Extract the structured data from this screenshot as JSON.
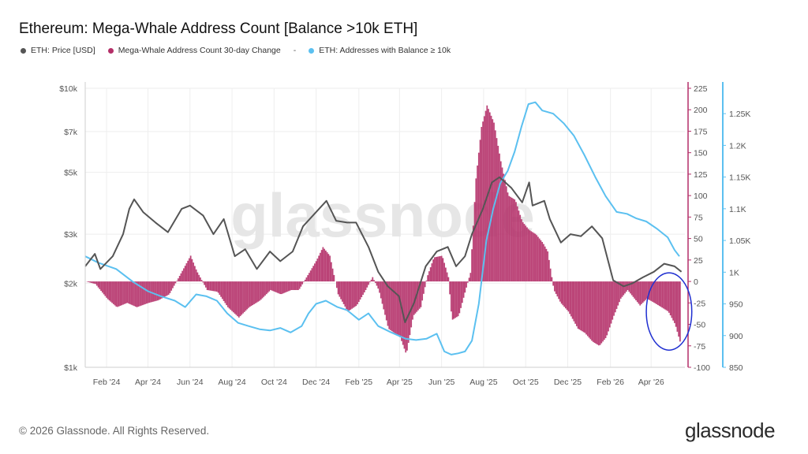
{
  "header": {
    "title": "Ethereum: Mega-Whale Address Count [Balance >10k ETH]"
  },
  "legend": {
    "items": [
      {
        "label": "ETH: Price [USD]",
        "color": "#555555",
        "icon": "dot"
      },
      {
        "label": "Mega-Whale Address Count 30-day Change",
        "color": "#b42f68",
        "icon": "dot"
      },
      {
        "label": "ETH: Addresses with Balance ≥ 10k",
        "color": "#5bc0f0",
        "icon": "dot"
      }
    ],
    "separator": "-"
  },
  "footer": {
    "copyright": "© 2026 Glassnode. All Rights Reserved.",
    "brand": "glassnode"
  },
  "watermark": "glassnode",
  "chart_data": {
    "type": "line",
    "x_ticks": [
      "Feb '24",
      "Apr '24",
      "Jun '24",
      "Aug '24",
      "Oct '24",
      "Dec '24",
      "Feb '25",
      "Apr '25",
      "Jun '25",
      "Aug '25",
      "Oct '25",
      "Dec '25",
      "Feb '26",
      "Apr '26"
    ],
    "x_range": [
      "2024-01-01",
      "2026-05-20"
    ],
    "axes": {
      "left": {
        "scale": "log",
        "range": [
          1000,
          10000
        ],
        "ticks": [
          "$1k",
          "$2k",
          "$3k",
          "$5k",
          "$7k",
          "$10k"
        ],
        "tick_values": [
          1000,
          2000,
          3000,
          5000,
          7000,
          10000
        ],
        "color": "#888888"
      },
      "right_inner": {
        "range": [
          -100,
          225
        ],
        "ticks": [
          "-100",
          "-75",
          "-50",
          "-25",
          "0",
          "25",
          "50",
          "75",
          "100",
          "125",
          "150",
          "175",
          "200",
          "225"
        ],
        "tick_values": [
          -100,
          -75,
          -50,
          -25,
          0,
          25,
          50,
          75,
          100,
          125,
          150,
          175,
          200,
          225
        ],
        "color": "#b42f68"
      },
      "right_outer": {
        "range": [
          850,
          1290
        ],
        "ticks": [
          "850",
          "900",
          "950",
          "1K",
          "1.05K",
          "1.1K",
          "1.15K",
          "1.2K",
          "1.25K"
        ],
        "tick_values": [
          850,
          900,
          950,
          1000,
          1050,
          1100,
          1150,
          1200,
          1250
        ],
        "color": "#5bc0f0"
      }
    },
    "series": [
      {
        "name": "ETH: Price [USD]",
        "axis": "left",
        "color": "#555555",
        "points": [
          [
            "2024-01-01",
            2300
          ],
          [
            "2024-01-15",
            2550
          ],
          [
            "2024-01-23",
            2250
          ],
          [
            "2024-02-10",
            2500
          ],
          [
            "2024-02-25",
            3000
          ],
          [
            "2024-03-05",
            3700
          ],
          [
            "2024-03-12",
            4000
          ],
          [
            "2024-03-25",
            3600
          ],
          [
            "2024-04-12",
            3300
          ],
          [
            "2024-04-30",
            3050
          ],
          [
            "2024-05-20",
            3700
          ],
          [
            "2024-06-01",
            3800
          ],
          [
            "2024-06-20",
            3500
          ],
          [
            "2024-07-05",
            3000
          ],
          [
            "2024-07-20",
            3400
          ],
          [
            "2024-08-05",
            2500
          ],
          [
            "2024-08-20",
            2650
          ],
          [
            "2024-09-06",
            2250
          ],
          [
            "2024-09-25",
            2600
          ],
          [
            "2024-10-10",
            2400
          ],
          [
            "2024-10-28",
            2600
          ],
          [
            "2024-11-12",
            3200
          ],
          [
            "2024-12-01",
            3600
          ],
          [
            "2024-12-16",
            3950
          ],
          [
            "2024-12-30",
            3350
          ],
          [
            "2025-01-15",
            3300
          ],
          [
            "2025-01-28",
            3300
          ],
          [
            "2025-02-15",
            2700
          ],
          [
            "2025-03-01",
            2200
          ],
          [
            "2025-03-15",
            1950
          ],
          [
            "2025-03-31",
            1800
          ],
          [
            "2025-04-09",
            1450
          ],
          [
            "2025-04-22",
            1700
          ],
          [
            "2025-05-09",
            2300
          ],
          [
            "2025-05-25",
            2600
          ],
          [
            "2025-06-10",
            2700
          ],
          [
            "2025-06-22",
            2300
          ],
          [
            "2025-07-05",
            2500
          ],
          [
            "2025-07-15",
            3000
          ],
          [
            "2025-07-31",
            3700
          ],
          [
            "2025-08-13",
            4600
          ],
          [
            "2025-08-24",
            4800
          ],
          [
            "2025-09-10",
            4400
          ],
          [
            "2025-09-26",
            3900
          ],
          [
            "2025-10-06",
            4600
          ],
          [
            "2025-10-11",
            3800
          ],
          [
            "2025-10-28",
            3950
          ],
          [
            "2025-11-05",
            3400
          ],
          [
            "2025-11-21",
            2800
          ],
          [
            "2025-12-05",
            3000
          ],
          [
            "2025-12-20",
            2950
          ],
          [
            "2026-01-05",
            3200
          ],
          [
            "2026-01-20",
            2900
          ],
          [
            "2026-02-05",
            2050
          ],
          [
            "2026-02-20",
            1950
          ],
          [
            "2026-03-05",
            2000
          ],
          [
            "2026-03-20",
            2100
          ],
          [
            "2026-04-05",
            2200
          ],
          [
            "2026-04-20",
            2350
          ],
          [
            "2026-05-05",
            2300
          ],
          [
            "2026-05-15",
            2200
          ]
        ]
      },
      {
        "name": "Mega-Whale Address Count 30-day Change",
        "axis": "right_inner",
        "color": "#b42f68",
        "style": "bars",
        "points": [
          [
            "2024-01-01",
            0
          ],
          [
            "2024-01-15",
            -3
          ],
          [
            "2024-02-01",
            -20
          ],
          [
            "2024-02-15",
            -30
          ],
          [
            "2024-03-01",
            -25
          ],
          [
            "2024-03-15",
            -30
          ],
          [
            "2024-04-01",
            -25
          ],
          [
            "2024-04-15",
            -22
          ],
          [
            "2024-05-01",
            -15
          ],
          [
            "2024-05-15",
            5
          ],
          [
            "2024-06-01",
            30
          ],
          [
            "2024-06-10",
            12
          ],
          [
            "2024-06-25",
            -10
          ],
          [
            "2024-07-10",
            -12
          ],
          [
            "2024-07-25",
            -30
          ],
          [
            "2024-08-10",
            -42
          ],
          [
            "2024-08-25",
            -30
          ],
          [
            "2024-09-10",
            -22
          ],
          [
            "2024-09-25",
            -10
          ],
          [
            "2024-10-10",
            -15
          ],
          [
            "2024-10-25",
            -10
          ],
          [
            "2024-11-05",
            -10
          ],
          [
            "2024-11-20",
            10
          ],
          [
            "2024-12-01",
            25
          ],
          [
            "2024-12-10",
            40
          ],
          [
            "2024-12-20",
            30
          ],
          [
            "2025-01-01",
            -15
          ],
          [
            "2025-01-15",
            -35
          ],
          [
            "2025-01-28",
            -28
          ],
          [
            "2025-02-10",
            -10
          ],
          [
            "2025-02-20",
            5
          ],
          [
            "2025-03-01",
            -10
          ],
          [
            "2025-03-15",
            -55
          ],
          [
            "2025-04-01",
            -65
          ],
          [
            "2025-04-10",
            -85
          ],
          [
            "2025-04-20",
            -40
          ],
          [
            "2025-05-01",
            -30
          ],
          [
            "2025-05-10",
            5
          ],
          [
            "2025-05-20",
            28
          ],
          [
            "2025-06-01",
            30
          ],
          [
            "2025-06-10",
            5
          ],
          [
            "2025-06-15",
            -45
          ],
          [
            "2025-06-25",
            -40
          ],
          [
            "2025-07-05",
            -10
          ],
          [
            "2025-07-12",
            10
          ],
          [
            "2025-07-20",
            120
          ],
          [
            "2025-07-28",
            180
          ],
          [
            "2025-08-05",
            205
          ],
          [
            "2025-08-15",
            185
          ],
          [
            "2025-08-25",
            140
          ],
          [
            "2025-09-05",
            100
          ],
          [
            "2025-09-15",
            95
          ],
          [
            "2025-09-25",
            70
          ],
          [
            "2025-10-05",
            60
          ],
          [
            "2025-10-15",
            55
          ],
          [
            "2025-10-25",
            45
          ],
          [
            "2025-11-01",
            35
          ],
          [
            "2025-11-10",
            -10
          ],
          [
            "2025-11-20",
            -25
          ],
          [
            "2025-12-01",
            -35
          ],
          [
            "2025-12-15",
            -55
          ],
          [
            "2025-12-25",
            -60
          ],
          [
            "2026-01-05",
            -70
          ],
          [
            "2026-01-15",
            -75
          ],
          [
            "2026-01-25",
            -65
          ],
          [
            "2026-02-05",
            -40
          ],
          [
            "2026-02-15",
            -20
          ],
          [
            "2026-02-25",
            -10
          ],
          [
            "2026-03-05",
            -18
          ],
          [
            "2026-03-15",
            -28
          ],
          [
            "2026-03-25",
            -20
          ],
          [
            "2026-04-05",
            -25
          ],
          [
            "2026-04-15",
            -30
          ],
          [
            "2026-04-25",
            -35
          ],
          [
            "2026-05-05",
            -50
          ],
          [
            "2026-05-12",
            -70
          ]
        ]
      },
      {
        "name": "ETH: Addresses with Balance ≥ 10k",
        "axis": "right_outer",
        "color": "#5bc0f0",
        "points": [
          [
            "2024-01-01",
            1025
          ],
          [
            "2024-01-20",
            1015
          ],
          [
            "2024-02-15",
            1005
          ],
          [
            "2024-03-10",
            985
          ],
          [
            "2024-04-01",
            970
          ],
          [
            "2024-04-20",
            962
          ],
          [
            "2024-05-10",
            955
          ],
          [
            "2024-05-25",
            945
          ],
          [
            "2024-06-10",
            965
          ],
          [
            "2024-06-25",
            962
          ],
          [
            "2024-07-10",
            955
          ],
          [
            "2024-07-25",
            935
          ],
          [
            "2024-08-10",
            920
          ],
          [
            "2024-08-25",
            915
          ],
          [
            "2024-09-10",
            910
          ],
          [
            "2024-09-25",
            908
          ],
          [
            "2024-10-10",
            912
          ],
          [
            "2024-10-25",
            905
          ],
          [
            "2024-11-10",
            915
          ],
          [
            "2024-11-20",
            935
          ],
          [
            "2024-12-01",
            950
          ],
          [
            "2024-12-15",
            955
          ],
          [
            "2025-01-01",
            945
          ],
          [
            "2025-01-15",
            940
          ],
          [
            "2025-02-01",
            925
          ],
          [
            "2025-02-15",
            935
          ],
          [
            "2025-03-01",
            915
          ],
          [
            "2025-03-20",
            905
          ],
          [
            "2025-04-10",
            895
          ],
          [
            "2025-04-25",
            893
          ],
          [
            "2025-05-10",
            895
          ],
          [
            "2025-05-25",
            903
          ],
          [
            "2025-06-05",
            875
          ],
          [
            "2025-06-15",
            870
          ],
          [
            "2025-06-25",
            872
          ],
          [
            "2025-07-05",
            875
          ],
          [
            "2025-07-15",
            892
          ],
          [
            "2025-07-25",
            950
          ],
          [
            "2025-08-05",
            1050
          ],
          [
            "2025-08-15",
            1100
          ],
          [
            "2025-08-25",
            1140
          ],
          [
            "2025-09-05",
            1160
          ],
          [
            "2025-09-15",
            1190
          ],
          [
            "2025-09-25",
            1230
          ],
          [
            "2025-10-05",
            1265
          ],
          [
            "2025-10-15",
            1268
          ],
          [
            "2025-10-25",
            1255
          ],
          [
            "2025-11-10",
            1250
          ],
          [
            "2025-11-25",
            1235
          ],
          [
            "2025-12-10",
            1215
          ],
          [
            "2025-12-25",
            1185
          ],
          [
            "2026-01-10",
            1150
          ],
          [
            "2026-01-25",
            1120
          ],
          [
            "2026-02-10",
            1095
          ],
          [
            "2026-02-25",
            1092
          ],
          [
            "2026-03-10",
            1085
          ],
          [
            "2026-03-25",
            1080
          ],
          [
            "2026-04-10",
            1068
          ],
          [
            "2026-04-25",
            1055
          ],
          [
            "2026-05-05",
            1035
          ],
          [
            "2026-05-12",
            1025
          ]
        ]
      }
    ],
    "annotation": {
      "type": "ellipse",
      "color": "#1f2fd1",
      "x_range": [
        "2026-03-25",
        "2026-05-30"
      ],
      "y_range_inner": [
        -80,
        10
      ]
    },
    "grid": {
      "vertical": true,
      "horizontal": true
    }
  }
}
